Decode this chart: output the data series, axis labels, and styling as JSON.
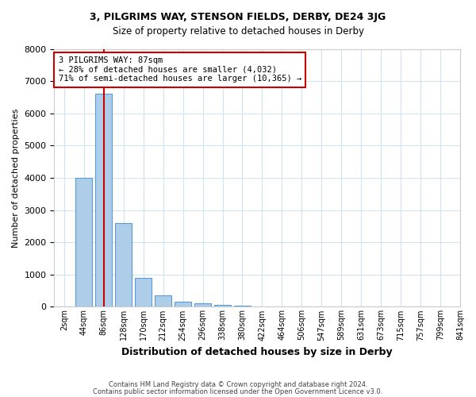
{
  "title1": "3, PILGRIMS WAY, STENSON FIELDS, DERBY, DE24 3JG",
  "title2": "Size of property relative to detached houses in Derby",
  "xlabel": "Distribution of detached houses by size in Derby",
  "ylabel": "Number of detached properties",
  "bin_labels": [
    "2sqm",
    "44sqm",
    "86sqm",
    "128sqm",
    "170sqm",
    "212sqm",
    "254sqm",
    "296sqm",
    "338sqm",
    "380sqm",
    "422sqm",
    "464sqm",
    "506sqm",
    "547sqm",
    "589sqm",
    "631sqm",
    "673sqm",
    "715sqm",
    "757sqm",
    "799sqm",
    "841sqm"
  ],
  "bar_heights": [
    5,
    4000,
    6620,
    2600,
    900,
    350,
    150,
    120,
    50,
    30,
    15,
    5,
    2,
    1,
    0,
    0,
    0,
    0,
    0,
    0
  ],
  "bar_color": "#aecde8",
  "bar_edge_color": "#5b9bd5",
  "property_line_x": 2,
  "property_line_color": "#cc0000",
  "annotation_line1": "3 PILGRIMS WAY: 87sqm",
  "annotation_line2": "← 28% of detached houses are smaller (4,032)",
  "annotation_line3": "71% of semi-detached houses are larger (10,365) →",
  "annotation_box_color": "#cc0000",
  "ylim": [
    0,
    8000
  ],
  "yticks": [
    0,
    1000,
    2000,
    3000,
    4000,
    5000,
    6000,
    7000,
    8000
  ],
  "footnote1": "Contains HM Land Registry data © Crown copyright and database right 2024.",
  "footnote2": "Contains public sector information licensed under the Open Government Licence v3.0.",
  "bg_color": "#ffffff",
  "grid_color": "#d0e4f0"
}
